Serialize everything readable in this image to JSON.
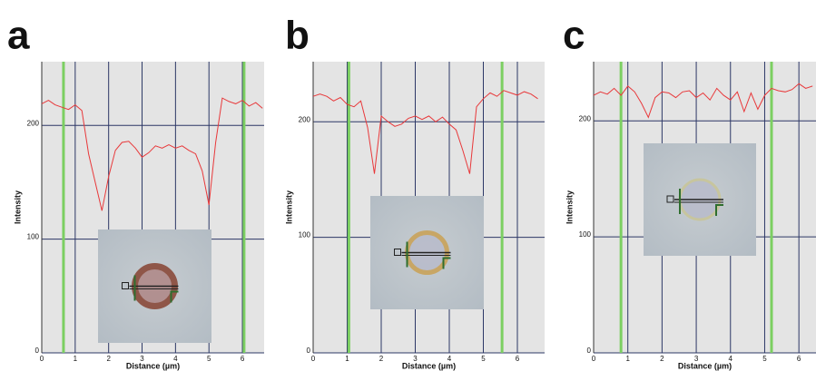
{
  "chart_data": [
    {
      "type": "line",
      "panel_label": "a",
      "xlabel": "Distance (µm)",
      "ylabel": "Intensity",
      "x": [
        0,
        0.2,
        0.4,
        0.6,
        0.8,
        1.0,
        1.2,
        1.4,
        1.6,
        1.8,
        2.0,
        2.2,
        2.4,
        2.6,
        2.8,
        3.0,
        3.2,
        3.4,
        3.6,
        3.8,
        4.0,
        4.2,
        4.4,
        4.6,
        4.8,
        5.0,
        5.2,
        5.4,
        5.6,
        5.8,
        6.0,
        6.2,
        6.4,
        6.6
      ],
      "values": [
        219,
        222,
        218,
        216,
        214,
        218,
        213,
        175,
        150,
        125,
        155,
        178,
        185,
        186,
        180,
        172,
        176,
        182,
        180,
        183,
        180,
        182,
        178,
        175,
        160,
        130,
        185,
        224,
        221,
        219,
        222,
        217,
        220,
        215
      ],
      "color": "#e8383a",
      "markers": [
        0.65,
        6.05
      ],
      "marker_color": "#7ccf62",
      "xlim": [
        0,
        6.65
      ],
      "ylim": [
        0,
        256
      ],
      "xticks": [
        0,
        1,
        2,
        3,
        4,
        5,
        6
      ],
      "yticks": [
        0,
        100,
        200
      ],
      "grid": true
    },
    {
      "type": "line",
      "panel_label": "b",
      "xlabel": "Distance (µm)",
      "ylabel": "Intensity",
      "x": [
        0,
        0.2,
        0.4,
        0.6,
        0.8,
        1.0,
        1.2,
        1.4,
        1.6,
        1.8,
        2.0,
        2.2,
        2.4,
        2.6,
        2.8,
        3.0,
        3.2,
        3.4,
        3.6,
        3.8,
        4.0,
        4.2,
        4.4,
        4.6,
        4.8,
        5.0,
        5.2,
        5.4,
        5.6,
        5.8,
        6.0,
        6.2,
        6.4,
        6.6
      ],
      "values": [
        222,
        224,
        222,
        218,
        221,
        215,
        213,
        218,
        195,
        155,
        205,
        200,
        196,
        198,
        203,
        205,
        202,
        205,
        200,
        204,
        198,
        193,
        175,
        155,
        213,
        220,
        225,
        222,
        227,
        225,
        223,
        226,
        224,
        220
      ],
      "color": "#e8383a",
      "markers": [
        1.05,
        5.55
      ],
      "marker_color": "#7ccf62",
      "xlim": [
        0,
        6.8
      ],
      "ylim": [
        0,
        252
      ],
      "xticks": [
        0,
        1,
        2,
        3,
        4,
        5,
        6
      ],
      "yticks": [
        0,
        100,
        200
      ],
      "grid": true
    },
    {
      "type": "line",
      "panel_label": "c",
      "xlabel": "Distance (µm)",
      "ylabel": "Intensity",
      "x": [
        0,
        0.2,
        0.4,
        0.6,
        0.8,
        1.0,
        1.2,
        1.4,
        1.6,
        1.8,
        2.0,
        2.2,
        2.4,
        2.6,
        2.8,
        3.0,
        3.2,
        3.4,
        3.6,
        3.8,
        4.0,
        4.2,
        4.4,
        4.6,
        4.8,
        5.0,
        5.2,
        5.4,
        5.6,
        5.8,
        6.0,
        6.2,
        6.4
      ],
      "values": [
        222,
        225,
        223,
        228,
        222,
        230,
        225,
        215,
        203,
        220,
        225,
        224,
        220,
        225,
        226,
        220,
        224,
        218,
        228,
        222,
        218,
        225,
        208,
        224,
        210,
        222,
        228,
        226,
        225,
        227,
        232,
        228,
        230
      ],
      "color": "#e8383a",
      "markers": [
        0.8,
        5.2
      ],
      "marker_color": "#7ccf62",
      "xlim": [
        0,
        6.5
      ],
      "ylim": [
        0,
        251
      ],
      "xticks": [
        0,
        1,
        2,
        3,
        4,
        5,
        6
      ],
      "yticks": [
        0,
        100,
        200
      ],
      "grid": true
    }
  ]
}
